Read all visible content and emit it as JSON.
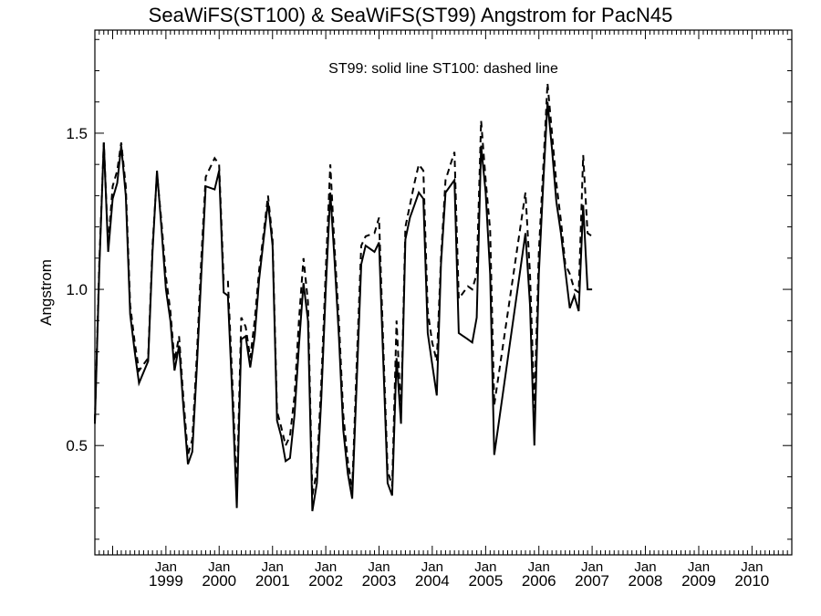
{
  "chart_data": {
    "type": "line",
    "title": "SeaWiFS(ST100) & SeaWiFS(ST99)  Angstrom for PacN45",
    "ylabel": "Angstrom",
    "xlabel": "",
    "annotation": "ST99: solid line   ST100: dashed line",
    "xlim": [
      "1997-09-01",
      "2010-10-01"
    ],
    "ylim": [
      0.15,
      1.83
    ],
    "grid": false,
    "x_ticks": [
      {
        "date": "1999-01-01",
        "label": "Jan",
        "year": "1999"
      },
      {
        "date": "2000-01-01",
        "label": "Jan",
        "year": "2000"
      },
      {
        "date": "2001-01-01",
        "label": "Jan",
        "year": "2001"
      },
      {
        "date": "2002-01-01",
        "label": "Jan",
        "year": "2002"
      },
      {
        "date": "2003-01-01",
        "label": "Jan",
        "year": "2003"
      },
      {
        "date": "2004-01-01",
        "label": "Jan",
        "year": "2004"
      },
      {
        "date": "2005-01-01",
        "label": "Jan",
        "year": "2005"
      },
      {
        "date": "2006-01-01",
        "label": "Jan",
        "year": "2006"
      },
      {
        "date": "2007-01-01",
        "label": "Jan",
        "year": "2007"
      },
      {
        "date": "2008-01-01",
        "label": "Jan",
        "year": "2008"
      },
      {
        "date": "2009-01-01",
        "label": "Jan",
        "year": "2009"
      },
      {
        "date": "2010-01-01",
        "label": "Jan",
        "year": "2010"
      }
    ],
    "y_ticks": [
      {
        "value": 0.5,
        "label": "0.5"
      },
      {
        "value": 1.0,
        "label": "1.0"
      },
      {
        "value": 1.5,
        "label": "1.5"
      }
    ],
    "series": [
      {
        "name": "ST99",
        "style": "solid",
        "points": [
          [
            "1997-09-01",
            0.57
          ],
          [
            "1997-10-01",
            1.06
          ],
          [
            "1997-11-01",
            1.47
          ],
          [
            "1997-12-01",
            1.12
          ],
          [
            "1998-01-01",
            1.29
          ],
          [
            "1998-02-01",
            1.34
          ],
          [
            "1998-03-01",
            1.46
          ],
          [
            "1998-04-01",
            1.3
          ],
          [
            "1998-05-01",
            0.92
          ],
          [
            "1998-06-01",
            0.8
          ],
          [
            "1998-07-01",
            0.7
          ],
          [
            "1998-09-01",
            0.77
          ],
          [
            "1998-10-01",
            1.12
          ],
          [
            "1998-11-01",
            1.38
          ],
          [
            "1998-12-01",
            1.2
          ],
          [
            "1999-01-01",
            1.0
          ],
          [
            "1999-02-01",
            0.9
          ],
          [
            "1999-03-01",
            0.74
          ],
          [
            "1999-04-01",
            0.82
          ],
          [
            "1999-05-01",
            0.62
          ],
          [
            "1999-06-01",
            0.44
          ],
          [
            "1999-07-01",
            0.48
          ],
          [
            "1999-08-01",
            0.75
          ],
          [
            "1999-09-01",
            1.05
          ],
          [
            "1999-10-01",
            1.33
          ],
          [
            "1999-12-01",
            1.32
          ],
          [
            "2000-01-01",
            1.38
          ],
          [
            "2000-02-01",
            0.99
          ],
          [
            "2000-03-01",
            0.98
          ],
          [
            "2000-04-01",
            0.65
          ],
          [
            "2000-05-01",
            0.3
          ],
          [
            "2000-06-01",
            0.84
          ],
          [
            "2000-07-01",
            0.85
          ],
          [
            "2000-08-01",
            0.75
          ],
          [
            "2000-09-01",
            0.85
          ],
          [
            "2000-10-01",
            1.03
          ],
          [
            "2000-11-01",
            1.16
          ],
          [
            "2000-12-01",
            1.28
          ],
          [
            "2001-01-01",
            1.14
          ],
          [
            "2001-02-01",
            0.58
          ],
          [
            "2001-03-01",
            0.53
          ],
          [
            "2001-04-01",
            0.45
          ],
          [
            "2001-05-01",
            0.46
          ],
          [
            "2001-06-01",
            0.6
          ],
          [
            "2001-07-01",
            0.82
          ],
          [
            "2001-08-01",
            1.02
          ],
          [
            "2001-09-01",
            0.9
          ],
          [
            "2001-10-01",
            0.29
          ],
          [
            "2001-11-01",
            0.38
          ],
          [
            "2001-12-01",
            0.65
          ],
          [
            "2002-01-01",
            1.0
          ],
          [
            "2002-02-01",
            1.31
          ],
          [
            "2002-03-01",
            1.1
          ],
          [
            "2002-04-01",
            0.85
          ],
          [
            "2002-05-01",
            0.55
          ],
          [
            "2002-06-01",
            0.41
          ],
          [
            "2002-07-01",
            0.33
          ],
          [
            "2002-08-01",
            0.7
          ],
          [
            "2002-09-01",
            1.08
          ],
          [
            "2002-10-01",
            1.14
          ],
          [
            "2002-12-01",
            1.12
          ],
          [
            "2003-01-01",
            1.15
          ],
          [
            "2003-02-01",
            0.75
          ],
          [
            "2003-03-01",
            0.38
          ],
          [
            "2003-04-01",
            0.34
          ],
          [
            "2003-05-01",
            0.78
          ],
          [
            "2003-06-01",
            0.57
          ],
          [
            "2003-07-01",
            1.16
          ],
          [
            "2003-08-01",
            1.23
          ],
          [
            "2003-09-01",
            1.27
          ],
          [
            "2003-10-01",
            1.31
          ],
          [
            "2003-11-01",
            1.29
          ],
          [
            "2003-12-01",
            0.86
          ],
          [
            "2004-01-01",
            0.76
          ],
          [
            "2004-02-01",
            0.66
          ],
          [
            "2004-03-01",
            1.08
          ],
          [
            "2004-04-01",
            1.31
          ],
          [
            "2004-06-01",
            1.35
          ],
          [
            "2004-07-01",
            0.86
          ],
          [
            "2004-09-01",
            0.84
          ],
          [
            "2004-10-01",
            0.83
          ],
          [
            "2004-11-01",
            0.91
          ],
          [
            "2004-12-01",
            1.46
          ],
          [
            "2005-01-01",
            1.31
          ],
          [
            "2005-02-01",
            1.05
          ],
          [
            "2005-03-01",
            0.47
          ],
          [
            "2005-10-01",
            1.18
          ],
          [
            "2005-11-01",
            0.95
          ],
          [
            "2005-12-01",
            0.5
          ],
          [
            "2006-01-01",
            1.05
          ],
          [
            "2006-02-01",
            1.35
          ],
          [
            "2006-03-01",
            1.6
          ],
          [
            "2006-04-01",
            1.45
          ],
          [
            "2006-05-01",
            1.28
          ],
          [
            "2006-06-01",
            1.18
          ],
          [
            "2006-07-01",
            1.06
          ],
          [
            "2006-08-01",
            0.94
          ],
          [
            "2006-09-01",
            0.98
          ],
          [
            "2006-10-01",
            0.93
          ],
          [
            "2006-11-01",
            1.27
          ],
          [
            "2006-12-01",
            1.0
          ],
          [
            "2007-01-01",
            1.0
          ]
        ]
      },
      {
        "name": "ST100",
        "style": "dashed",
        "points": [
          [
            "1997-09-01",
            0.58
          ],
          [
            "1997-10-01",
            1.08
          ],
          [
            "1997-11-01",
            1.47
          ],
          [
            "1997-12-01",
            1.14
          ],
          [
            "1998-01-01",
            1.33
          ],
          [
            "1998-02-01",
            1.38
          ],
          [
            "1998-03-01",
            1.47
          ],
          [
            "1998-04-01",
            1.33
          ],
          [
            "1998-05-01",
            0.95
          ],
          [
            "1998-06-01",
            0.83
          ],
          [
            "1998-07-01",
            0.74
          ],
          [
            "1998-09-01",
            0.78
          ],
          [
            "1998-10-01",
            1.14
          ],
          [
            "1998-11-01",
            1.37
          ],
          [
            "1998-12-01",
            1.22
          ],
          [
            "1999-01-01",
            1.04
          ],
          [
            "1999-02-01",
            0.93
          ],
          [
            "1999-03-01",
            0.77
          ],
          [
            "1999-04-01",
            0.85
          ],
          [
            "1999-05-01",
            0.65
          ],
          [
            "1999-06-01",
            0.47
          ],
          [
            "1999-07-01",
            0.52
          ],
          [
            "1999-08-01",
            0.79
          ],
          [
            "1999-09-01",
            1.1
          ],
          [
            "1999-10-01",
            1.36
          ],
          [
            "1999-12-01",
            1.42
          ],
          [
            "2000-01-01",
            1.4
          ],
          [
            "2000-02-01",
            1.03
          ],
          [
            "2000-03-01",
            1.03
          ],
          [
            "2000-04-01",
            0.7
          ],
          [
            "2000-05-01",
            0.35
          ],
          [
            "2000-06-01",
            0.91
          ],
          [
            "2000-07-01",
            0.88
          ],
          [
            "2000-08-01",
            0.78
          ],
          [
            "2000-09-01",
            0.9
          ],
          [
            "2000-10-01",
            1.06
          ],
          [
            "2000-11-01",
            1.18
          ],
          [
            "2000-12-01",
            1.3
          ],
          [
            "2001-01-01",
            1.16
          ],
          [
            "2001-02-01",
            0.61
          ],
          [
            "2001-03-01",
            0.56
          ],
          [
            "2001-04-01",
            0.5
          ],
          [
            "2001-05-01",
            0.53
          ],
          [
            "2001-06-01",
            0.66
          ],
          [
            "2001-07-01",
            0.9
          ],
          [
            "2001-08-01",
            1.1
          ],
          [
            "2001-09-01",
            0.96
          ],
          [
            "2001-10-01",
            0.34
          ],
          [
            "2001-11-01",
            0.42
          ],
          [
            "2001-12-01",
            0.7
          ],
          [
            "2002-01-01",
            1.06
          ],
          [
            "2002-02-01",
            1.4
          ],
          [
            "2002-03-01",
            1.14
          ],
          [
            "2002-04-01",
            0.9
          ],
          [
            "2002-05-01",
            0.6
          ],
          [
            "2002-06-01",
            0.45
          ],
          [
            "2002-07-01",
            0.36
          ],
          [
            "2002-08-01",
            0.76
          ],
          [
            "2002-09-01",
            1.14
          ],
          [
            "2002-10-01",
            1.17
          ],
          [
            "2002-12-01",
            1.18
          ],
          [
            "2003-01-01",
            1.23
          ],
          [
            "2003-02-01",
            0.8
          ],
          [
            "2003-03-01",
            0.42
          ],
          [
            "2003-04-01",
            0.37
          ],
          [
            "2003-05-01",
            0.9
          ],
          [
            "2003-06-01",
            0.6
          ],
          [
            "2003-07-01",
            1.2
          ],
          [
            "2003-08-01",
            1.27
          ],
          [
            "2003-09-01",
            1.34
          ],
          [
            "2003-10-01",
            1.4
          ],
          [
            "2003-11-01",
            1.38
          ],
          [
            "2003-12-01",
            0.93
          ],
          [
            "2004-01-01",
            0.83
          ],
          [
            "2004-02-01",
            0.77
          ],
          [
            "2004-03-01",
            1.1
          ],
          [
            "2004-04-01",
            1.35
          ],
          [
            "2004-06-01",
            1.44
          ],
          [
            "2004-07-01",
            0.97
          ],
          [
            "2004-09-01",
            1.01
          ],
          [
            "2004-10-01",
            1.0
          ],
          [
            "2004-11-01",
            1.05
          ],
          [
            "2004-12-01",
            1.54
          ],
          [
            "2005-01-01",
            1.35
          ],
          [
            "2005-02-01",
            1.19
          ],
          [
            "2005-03-01",
            0.63
          ],
          [
            "2005-10-01",
            1.31
          ],
          [
            "2005-11-01",
            1.05
          ],
          [
            "2005-12-01",
            0.62
          ],
          [
            "2006-01-01",
            1.12
          ],
          [
            "2006-02-01",
            1.4
          ],
          [
            "2006-03-01",
            1.66
          ],
          [
            "2006-04-01",
            1.5
          ],
          [
            "2006-05-01",
            1.34
          ],
          [
            "2006-06-01",
            1.22
          ],
          [
            "2006-07-01",
            1.08
          ],
          [
            "2006-08-01",
            1.05
          ],
          [
            "2006-09-01",
            1.0
          ],
          [
            "2006-10-01",
            0.99
          ],
          [
            "2006-11-01",
            1.43
          ],
          [
            "2006-12-01",
            1.18
          ],
          [
            "2007-01-01",
            1.17
          ]
        ]
      }
    ]
  }
}
